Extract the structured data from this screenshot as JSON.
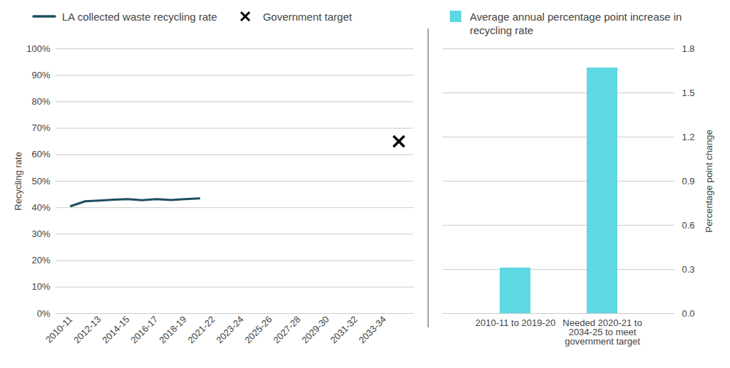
{
  "chart_data": [
    {
      "type": "line",
      "categories": [
        "2010-11",
        null,
        "2012-13",
        null,
        "2014-15",
        null,
        "2016-17",
        null,
        "2018-19",
        null,
        "2021-22",
        null,
        "2023-24",
        null,
        "2025-26",
        null,
        "2027-28",
        null,
        "2029-30",
        null,
        "2031-32",
        null,
        "2033-34",
        null
      ],
      "series": [
        {
          "name": "LA collected waste recycling rate",
          "color": "#1d4e5e",
          "type": "line",
          "values": [
            40.6,
            42.4,
            42.7,
            43.0,
            43.2,
            42.8,
            43.2,
            42.9,
            43.2,
            43.5,
            null,
            null,
            null,
            null,
            null,
            null,
            null,
            null,
            null,
            null,
            null,
            null,
            null,
            null
          ]
        },
        {
          "name": "Government target",
          "color": "#000000",
          "type": "scatter",
          "marker": "x",
          "values": [
            null,
            null,
            null,
            null,
            null,
            null,
            null,
            null,
            null,
            null,
            null,
            null,
            null,
            null,
            null,
            null,
            null,
            null,
            null,
            null,
            null,
            null,
            null,
            65
          ]
        }
      ],
      "ylabel": "Recycling rate",
      "ylim": [
        0,
        100
      ],
      "yticks": [
        {
          "value": 0,
          "label": "0%"
        },
        {
          "value": 10,
          "label": "10%"
        },
        {
          "value": 20,
          "label": "20%"
        },
        {
          "value": 30,
          "label": "30%"
        },
        {
          "value": 40,
          "label": "40%"
        },
        {
          "value": 50,
          "label": "50%"
        },
        {
          "value": 60,
          "label": "60%"
        },
        {
          "value": 70,
          "label": "70%"
        },
        {
          "value": 80,
          "label": "80%"
        },
        {
          "value": 90,
          "label": "90%"
        },
        {
          "value": 100,
          "label": "100%"
        }
      ],
      "grid": true,
      "legend": "top"
    },
    {
      "type": "bar",
      "categories": [
        "2010-11 to 2019-20",
        "Needed 2020-21 to 2034-25 to meet government target"
      ],
      "series": [
        {
          "name": "Average annual percentage point increase in recycling rate",
          "color": "#5ed8e3",
          "values": [
            0.31,
            1.67
          ]
        }
      ],
      "ylabel": "Percentage point change",
      "ylim": [
        0,
        1.8
      ],
      "yticks": [
        {
          "value": 0,
          "label": "0.0"
        },
        0.3,
        0.6,
        0.9,
        1.2,
        1.5,
        1.8
      ],
      "grid": true,
      "legend": "top"
    }
  ]
}
